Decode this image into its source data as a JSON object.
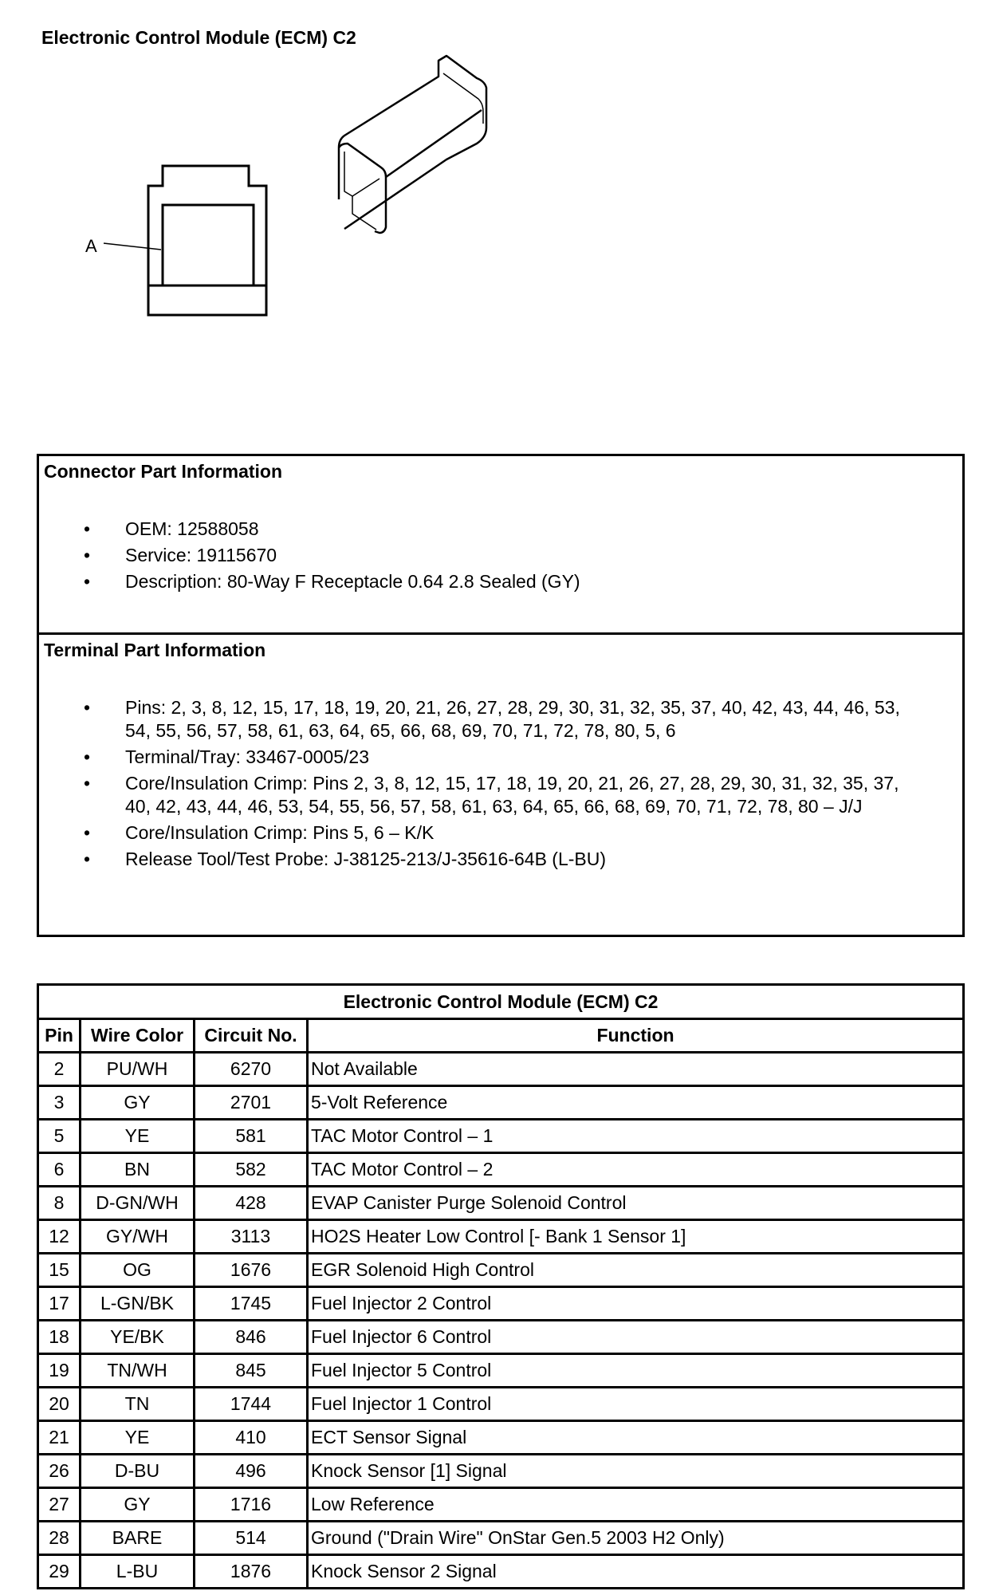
{
  "title": "Electronic Control Module (ECM) C2",
  "diagram": {
    "callout_label": "A"
  },
  "connector_info": {
    "heading": "Connector Part Information",
    "items": [
      "OEM: 12588058",
      "Service: 19115670",
      "Description: 80-Way F Receptacle 0.64 2.8 Sealed (GY)"
    ]
  },
  "terminal_info": {
    "heading": "Terminal Part Information",
    "items": [
      "Pins: 2, 3, 8, 12, 15, 17, 18, 19, 20, 21, 26, 27, 28, 29, 30, 31, 32, 35, 37, 40, 42, 43, 44, 46, 53, 54, 55, 56, 57, 58, 61, 63, 64, 65, 66, 68, 69, 70, 71, 72, 78, 80, 5, 6",
      "Terminal/Tray: 33467-0005/23",
      "Core/Insulation Crimp: Pins 2, 3, 8, 12, 15, 17, 18, 19, 20, 21, 26, 27, 28, 29, 30, 31, 32, 35, 37, 40, 42, 43, 44, 46, 53, 54, 55, 56, 57, 58, 61, 63, 64, 65, 66, 68, 69, 70, 71, 72, 78, 80 – J/J",
      "Core/Insulation Crimp: Pins 5, 6 – K/K",
      "Release Tool/Test Probe: J-38125-213/J-35616-64B (L-BU)"
    ]
  },
  "pin_table": {
    "title": "Electronic Control Module (ECM) C2",
    "headers": [
      "Pin",
      "Wire Color",
      "Circuit No.",
      "Function"
    ],
    "rows": [
      [
        "2",
        "PU/WH",
        "6270",
        "Not Available"
      ],
      [
        "3",
        "GY",
        "2701",
        "5-Volt Reference"
      ],
      [
        "5",
        "YE",
        "581",
        "TAC Motor Control – 1"
      ],
      [
        "6",
        "BN",
        "582",
        "TAC Motor Control – 2"
      ],
      [
        "8",
        "D-GN/WH",
        "428",
        "EVAP Canister Purge Solenoid Control"
      ],
      [
        "12",
        "GY/WH",
        "3113",
        "HO2S Heater Low Control [- Bank 1 Sensor 1]"
      ],
      [
        "15",
        "OG",
        "1676",
        "EGR Solenoid High Control"
      ],
      [
        "17",
        "L-GN/BK",
        "1745",
        "Fuel Injector 2 Control"
      ],
      [
        "18",
        "YE/BK",
        "846",
        "Fuel Injector 6 Control"
      ],
      [
        "19",
        "TN/WH",
        "845",
        "Fuel Injector 5 Control"
      ],
      [
        "20",
        "TN",
        "1744",
        "Fuel Injector 1 Control"
      ],
      [
        "21",
        "YE",
        "410",
        "ECT Sensor Signal"
      ],
      [
        "26",
        "D-BU",
        "496",
        "Knock Sensor [1] Signal"
      ],
      [
        "27",
        "GY",
        "1716",
        "Low Reference"
      ],
      [
        "28",
        "BARE",
        "514",
        "Ground (\"Drain Wire\" OnStar Gen.5 2003 H2 Only)"
      ],
      [
        "29",
        "L-BU",
        "1876",
        "Knock Sensor 2 Signal"
      ]
    ]
  }
}
